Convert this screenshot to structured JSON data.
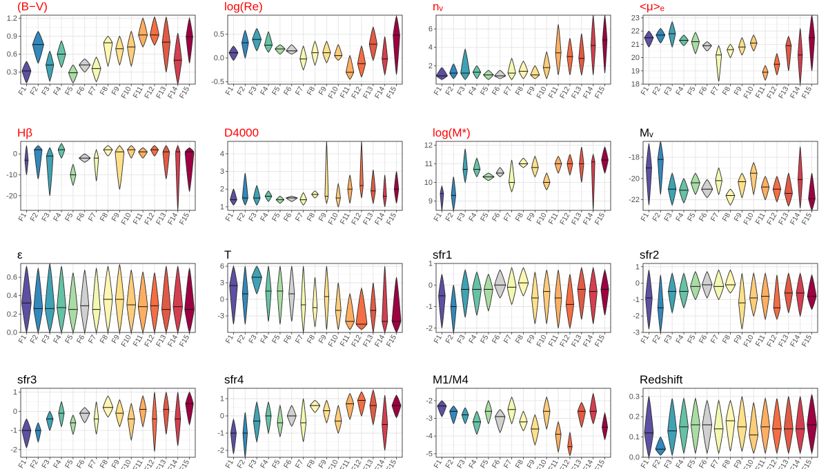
{
  "figure": {
    "categories": [
      "F1",
      "F2",
      "F3",
      "F4",
      "F5",
      "F6",
      "F7",
      "F8",
      "F9",
      "F10",
      "F11",
      "F12",
      "F13",
      "F14",
      "F15"
    ],
    "palette": [
      "#5e4fa2",
      "#3288bd",
      "#3fa2b4",
      "#66c2a5",
      "#a9dca4",
      "#d0d0d0",
      "#f2f8b0",
      "#fdf6b2",
      "#fee08b",
      "#fdcc7a",
      "#fdae61",
      "#f46d43",
      "#e25a44",
      "#d53e4f",
      "#9e0142"
    ]
  },
  "chart_data": [
    {
      "type": "violin",
      "title": "(B−V)",
      "title_color": "#ff0000",
      "ylim": [
        0.1,
        1.25
      ],
      "yticks": [
        "0.3",
        "0.6",
        "0.9",
        "1.2"
      ],
      "ytick_values": [
        0.3,
        0.6,
        0.9,
        1.2
      ],
      "medians": [
        0.32,
        0.76,
        0.42,
        0.6,
        0.29,
        0.42,
        0.36,
        0.79,
        0.69,
        0.72,
        0.92,
        0.92,
        0.8,
        0.5,
        0.89
      ],
      "lows": [
        0.12,
        0.45,
        0.15,
        0.38,
        0.12,
        0.3,
        0.14,
        0.4,
        0.42,
        0.4,
        0.72,
        0.75,
        0.3,
        0.1,
        0.45
      ],
      "highs": [
        0.48,
        0.98,
        0.65,
        0.82,
        0.42,
        0.52,
        0.55,
        0.9,
        0.9,
        0.98,
        1.2,
        1.22,
        1.22,
        0.95,
        1.2
      ],
      "widths": [
        0.8,
        1.0,
        0.7,
        0.75,
        0.8,
        1.0,
        0.8,
        0.8,
        0.7,
        0.7,
        0.8,
        0.8,
        0.7,
        0.7,
        0.6
      ]
    },
    {
      "type": "violin",
      "title": "log(Re)",
      "title_color": "#ff0000",
      "ylim": [
        -0.55,
        0.9
      ],
      "yticks": [
        "-0.5",
        "0.0",
        "0.5"
      ],
      "ytick_values": [
        -0.5,
        0.0,
        0.5
      ],
      "medians": [
        0.11,
        0.32,
        0.39,
        0.27,
        0.19,
        0.15,
        -0.02,
        0.11,
        0.11,
        0.05,
        -0.3,
        -0.12,
        0.29,
        -0.02,
        0.48
      ],
      "lows": [
        -0.05,
        0.0,
        0.15,
        0.12,
        0.08,
        0.08,
        -0.25,
        -0.15,
        -0.1,
        -0.05,
        -0.45,
        -0.4,
        -0.05,
        -0.35,
        -0.35
      ],
      "highs": [
        0.25,
        0.58,
        0.62,
        0.55,
        0.28,
        0.28,
        0.25,
        0.35,
        0.35,
        0.28,
        0.05,
        0.25,
        0.65,
        0.45,
        0.88
      ],
      "widths": [
        0.8,
        0.6,
        0.8,
        0.7,
        0.9,
        1.0,
        0.6,
        0.6,
        0.7,
        0.7,
        0.7,
        0.7,
        0.7,
        0.5,
        0.6
      ]
    },
    {
      "type": "violin",
      "title": "nᵥ",
      "title_color": "#ff0000",
      "ylim": [
        0,
        7.5
      ],
      "yticks": [
        "2",
        "4",
        "6"
      ],
      "ytick_values": [
        2,
        4,
        6
      ],
      "medians": [
        0.9,
        1.2,
        1.2,
        1.3,
        1.0,
        0.9,
        1.2,
        1.4,
        1.0,
        1.8,
        3.4,
        3.0,
        2.8,
        4.2,
        4.8
      ],
      "lows": [
        0.5,
        0.6,
        0.5,
        0.6,
        0.5,
        0.6,
        0.5,
        0.6,
        0.6,
        0.6,
        1.0,
        1.0,
        1.0,
        1.0,
        1.2
      ],
      "highs": [
        1.8,
        2.2,
        3.8,
        2.0,
        1.5,
        1.5,
        2.8,
        2.5,
        2.0,
        3.5,
        6.5,
        5.0,
        5.5,
        7.5,
        7.5
      ],
      "widths": [
        1.0,
        0.7,
        0.8,
        0.7,
        0.9,
        1.0,
        0.7,
        0.8,
        0.8,
        0.6,
        0.5,
        0.5,
        0.5,
        0.4,
        0.4
      ]
    },
    {
      "type": "violin",
      "title": "<μ>ₑ",
      "title_color": "#ff0000",
      "ylim": [
        18,
        23.2
      ],
      "yticks": [
        "18",
        "19",
        "20",
        "21",
        "22",
        "23"
      ],
      "ytick_values": [
        18,
        19,
        20,
        21,
        22,
        23
      ],
      "medians": [
        21.5,
        21.7,
        21.8,
        21.3,
        21.2,
        20.9,
        20.2,
        20.6,
        20.8,
        21.1,
        18.9,
        19.5,
        20.9,
        20.2,
        21.5
      ],
      "lows": [
        20.8,
        21.1,
        20.8,
        20.9,
        20.3,
        20.5,
        18.2,
        20.0,
        20.2,
        20.5,
        18.3,
        18.7,
        19.0,
        18.0,
        19.0
      ],
      "highs": [
        22.0,
        22.2,
        22.7,
        21.7,
        21.9,
        21.2,
        20.9,
        21.0,
        21.5,
        21.7,
        19.4,
        20.3,
        21.6,
        22.2,
        23.2
      ],
      "widths": [
        0.8,
        0.8,
        0.6,
        0.8,
        0.7,
        0.8,
        0.5,
        0.6,
        0.6,
        0.6,
        0.5,
        0.5,
        0.5,
        0.4,
        0.5
      ]
    },
    {
      "type": "violin",
      "title": "Hβ",
      "title_color": "#ff0000",
      "ylim": [
        -27,
        6
      ],
      "yticks": [
        "0",
        "-10",
        "-20"
      ],
      "ytick_values": [
        0,
        -10,
        -20
      ],
      "medians": [
        -3,
        2,
        -1,
        2,
        -10,
        -2,
        -2,
        2,
        1,
        2,
        1,
        2,
        1,
        1,
        1
      ],
      "lows": [
        -10,
        -12,
        -20,
        -2,
        -15,
        -4,
        -13,
        -1,
        -17,
        -2,
        -2,
        -1,
        -12,
        -27,
        -18
      ],
      "highs": [
        4,
        4,
        3,
        5,
        -5,
        0,
        2,
        4,
        4,
        4,
        3,
        4,
        4,
        4,
        3
      ],
      "widths": [
        0.3,
        0.7,
        0.6,
        0.6,
        0.5,
        1.0,
        0.4,
        0.8,
        0.8,
        0.7,
        0.8,
        0.7,
        0.6,
        0.4,
        0.8
      ]
    },
    {
      "type": "violin",
      "title": "D4000",
      "title_color": "#ff0000",
      "ylim": [
        0.8,
        4.7
      ],
      "yticks": [
        "1",
        "2",
        "3",
        "4"
      ],
      "ytick_values": [
        1,
        2,
        3,
        4
      ],
      "medians": [
        1.4,
        1.5,
        1.5,
        1.6,
        1.4,
        1.5,
        1.4,
        1.7,
        1.6,
        1.5,
        2.0,
        2.2,
        1.9,
        1.6,
        2.0
      ],
      "lows": [
        1.1,
        1.1,
        1.1,
        1.3,
        1.2,
        1.3,
        1.1,
        1.5,
        1.2,
        1.0,
        1.2,
        1.5,
        1.2,
        1.0,
        1.2
      ],
      "highs": [
        2.0,
        2.9,
        2.2,
        1.9,
        1.6,
        1.6,
        1.8,
        1.9,
        4.7,
        2.3,
        2.8,
        4.7,
        3.1,
        2.8,
        3.0
      ],
      "widths": [
        0.6,
        0.5,
        0.6,
        0.6,
        0.7,
        1.0,
        0.6,
        0.6,
        0.3,
        0.4,
        0.4,
        0.3,
        0.4,
        0.3,
        0.4
      ]
    },
    {
      "type": "violin",
      "title": "log(M*)",
      "title_color": "#ff0000",
      "ylim": [
        8.5,
        12.2
      ],
      "yticks": [
        "9",
        "10",
        "11",
        "12"
      ],
      "ytick_values": [
        9,
        10,
        11,
        12
      ],
      "medians": [
        9.4,
        9.3,
        10.7,
        10.7,
        10.3,
        10.5,
        10.0,
        11.0,
        10.8,
        10.0,
        11.0,
        11.0,
        11.0,
        11.1,
        11.2
      ],
      "lows": [
        8.5,
        8.5,
        10.0,
        10.3,
        10.1,
        10.3,
        9.5,
        10.8,
        10.3,
        9.6,
        10.5,
        10.4,
        10.0,
        8.5,
        10.5
      ],
      "highs": [
        9.8,
        10.3,
        11.8,
        11.3,
        10.5,
        10.8,
        11.2,
        11.3,
        11.4,
        10.5,
        11.4,
        11.5,
        11.9,
        11.5,
        11.9
      ],
      "widths": [
        0.3,
        0.4,
        0.4,
        0.6,
        1.0,
        0.7,
        0.5,
        0.8,
        0.6,
        0.6,
        0.6,
        0.5,
        0.4,
        0.3,
        0.6
      ]
    },
    {
      "type": "violin",
      "title": "Mᵥ",
      "title_color": "#000000",
      "ylim": [
        -23,
        -16.5
      ],
      "yticks": [
        "-18",
        "-20",
        "-22"
      ],
      "ytick_values": [
        -18,
        -20,
        -22
      ],
      "medians": [
        -19.0,
        -18.2,
        -21.0,
        -21.1,
        -20.4,
        -21.0,
        -20.2,
        -21.6,
        -20.3,
        -19.5,
        -20.8,
        -21.0,
        -21.4,
        -20.1,
        -21.9
      ],
      "lows": [
        -22.5,
        -21.5,
        -22.5,
        -22.3,
        -21.5,
        -21.8,
        -21.5,
        -22.5,
        -21.8,
        -21.5,
        -22.0,
        -22.2,
        -22.6,
        -22.8,
        -23.0
      ],
      "highs": [
        -16.7,
        -16.5,
        -19.5,
        -20.0,
        -19.5,
        -20.1,
        -19.0,
        -21.0,
        -19.5,
        -18.5,
        -19.8,
        -19.8,
        -19.5,
        -17.0,
        -19.5
      ],
      "widths": [
        0.5,
        0.5,
        0.7,
        0.8,
        0.8,
        1.0,
        0.6,
        0.8,
        0.7,
        0.6,
        0.7,
        0.7,
        0.7,
        0.4,
        0.6
      ]
    },
    {
      "type": "violin",
      "title": "ε",
      "title_color": "#000000",
      "ylim": [
        0,
        0.75
      ],
      "yticks": [
        "0.0",
        "0.2",
        "0.4",
        "0.6"
      ],
      "ytick_values": [
        0.0,
        0.2,
        0.4,
        0.6
      ],
      "medians": [
        0.32,
        0.26,
        0.26,
        0.27,
        0.25,
        0.29,
        0.25,
        0.36,
        0.36,
        0.3,
        0.28,
        0.29,
        0.25,
        0.28,
        0.25
      ],
      "lows": [
        0.0,
        0.0,
        0.0,
        0.0,
        0.0,
        0.0,
        0.0,
        0.0,
        0.0,
        0.0,
        0.0,
        0.0,
        0.0,
        0.0,
        0.0
      ],
      "highs": [
        0.72,
        0.7,
        0.75,
        0.72,
        0.65,
        0.68,
        0.7,
        0.72,
        0.74,
        0.68,
        0.66,
        0.65,
        0.72,
        0.72,
        0.7
      ],
      "widths": [
        0.85,
        0.8,
        0.85,
        0.8,
        0.8,
        0.75,
        0.7,
        0.8,
        0.75,
        0.8,
        0.85,
        0.75,
        0.8,
        0.85,
        0.85
      ]
    },
    {
      "type": "violin",
      "title": "T",
      "title_color": "#000000",
      "ylim": [
        -6,
        6.5
      ],
      "yticks": [
        "6",
        "3",
        "0",
        "-3"
      ],
      "ytick_values": [
        6,
        3,
        0,
        -3
      ],
      "medians": [
        2.5,
        1.0,
        4.0,
        1.5,
        1.5,
        1.0,
        -1.0,
        -1.5,
        0.5,
        -2.0,
        -4.0,
        -4.5,
        -2.0,
        -4.0,
        -4.0
      ],
      "lows": [
        -4.5,
        -4.5,
        1.0,
        -4.0,
        -4.5,
        -4.0,
        -6.0,
        -5.0,
        -5.5,
        -5.5,
        -5.5,
        -5.5,
        -6.0,
        -6.0,
        -6.0
      ],
      "highs": [
        6.0,
        6.0,
        6.0,
        6.0,
        6.0,
        6.0,
        6.0,
        4.0,
        6.0,
        3.0,
        1.0,
        2.0,
        3.0,
        6.0,
        4.0
      ],
      "widths": [
        0.7,
        0.5,
        0.9,
        0.5,
        0.5,
        0.5,
        0.4,
        0.4,
        0.4,
        0.5,
        0.8,
        1.0,
        0.5,
        0.5,
        0.8
      ]
    },
    {
      "type": "violin",
      "title": "sfr1",
      "title_color": "#000000",
      "ylim": [
        -2.2,
        1.0
      ],
      "yticks": [
        "1",
        "0",
        "-1",
        "-2"
      ],
      "ytick_values": [
        1,
        0,
        -1,
        -2
      ],
      "medians": [
        -0.5,
        -1.0,
        -0.2,
        -0.2,
        -0.2,
        0.0,
        -0.1,
        0.1,
        -0.6,
        -0.3,
        -0.6,
        -0.9,
        -0.2,
        -0.3,
        -0.2
      ],
      "lows": [
        -2.0,
        -2.2,
        -1.5,
        -1.4,
        -1.2,
        -0.6,
        -0.9,
        -0.5,
        -1.8,
        -1.8,
        -2.0,
        -2.0,
        -1.6,
        -1.8,
        -1.4
      ],
      "highs": [
        0.5,
        0.0,
        0.7,
        0.6,
        0.5,
        0.7,
        0.8,
        0.8,
        0.6,
        0.7,
        0.7,
        0.5,
        0.8,
        0.8,
        0.7
      ],
      "widths": [
        0.6,
        0.5,
        0.7,
        0.8,
        0.8,
        1.0,
        0.8,
        0.9,
        0.6,
        0.6,
        0.6,
        0.7,
        0.7,
        0.7,
        0.7
      ]
    },
    {
      "type": "violin",
      "title": "sfr2",
      "title_color": "#000000",
      "ylim": [
        -3,
        1.2
      ],
      "yticks": [
        "1",
        "0",
        "-1",
        "-2",
        "-3"
      ],
      "ytick_values": [
        1,
        0,
        -1,
        -2,
        -3
      ],
      "medians": [
        -0.9,
        -1.5,
        -0.5,
        -0.5,
        -0.2,
        -0.1,
        -0.2,
        -0.1,
        -1.2,
        -0.9,
        -0.8,
        -1.5,
        -0.6,
        -0.6,
        -0.8
      ],
      "lows": [
        -2.8,
        -3.0,
        -1.8,
        -1.5,
        -1.0,
        -0.9,
        -1.0,
        -0.6,
        -2.8,
        -2.0,
        -2.2,
        -2.2,
        -1.8,
        -2.0,
        -1.6
      ],
      "highs": [
        0.8,
        0.5,
        0.6,
        0.6,
        0.7,
        0.7,
        0.8,
        0.8,
        0.6,
        0.6,
        0.6,
        0.5,
        0.6,
        0.6,
        0.5
      ],
      "widths": [
        0.6,
        0.5,
        0.7,
        0.8,
        0.9,
        0.9,
        0.9,
        0.9,
        0.6,
        0.7,
        0.7,
        0.6,
        0.7,
        0.7,
        0.8
      ]
    },
    {
      "type": "violin",
      "title": "sfr3",
      "title_color": "#000000",
      "ylim": [
        -2.4,
        1.2
      ],
      "yticks": [
        "1",
        "0",
        "-1",
        "-2"
      ],
      "ytick_values": [
        1,
        0,
        -1,
        -2
      ],
      "medians": [
        -1.0,
        -1.0,
        -0.4,
        -0.1,
        -0.6,
        -0.1,
        -0.4,
        0.2,
        -0.1,
        -0.4,
        0.1,
        -0.4,
        0.1,
        -0.4,
        0.4
      ],
      "lows": [
        -1.9,
        -1.6,
        -1.0,
        -0.8,
        -1.2,
        -0.6,
        -1.2,
        -0.3,
        -0.8,
        -1.5,
        -0.8,
        -2.1,
        -1.2,
        -1.8,
        -0.7
      ],
      "highs": [
        -0.4,
        -0.6,
        0.0,
        0.5,
        -0.2,
        0.2,
        0.5,
        0.8,
        0.6,
        0.4,
        0.8,
        1.0,
        1.0,
        1.0,
        1.0
      ],
      "widths": [
        0.8,
        0.5,
        0.6,
        0.5,
        0.5,
        0.9,
        0.4,
        0.9,
        0.7,
        0.6,
        0.6,
        0.4,
        0.5,
        0.5,
        0.7
      ]
    },
    {
      "type": "violin",
      "title": "sfr4",
      "title_color": "#000000",
      "ylim": [
        -2.4,
        1.6
      ],
      "yticks": [
        "1",
        "0",
        "-1",
        "-2"
      ],
      "ytick_values": [
        1,
        0,
        -1,
        -2
      ],
      "medians": [
        -1.0,
        -1.0,
        -0.3,
        0.0,
        -0.4,
        0.0,
        -0.4,
        0.6,
        0.3,
        -0.3,
        0.7,
        0.9,
        0.6,
        -0.5,
        0.6
      ],
      "lows": [
        -2.2,
        -2.4,
        -1.5,
        -1.0,
        -1.2,
        -0.6,
        -1.5,
        0.2,
        -0.4,
        -1.0,
        -0.2,
        0.0,
        -0.5,
        -2.0,
        -0.1
      ],
      "highs": [
        -0.2,
        0.2,
        0.8,
        0.8,
        0.6,
        0.6,
        1.0,
        0.9,
        0.9,
        0.6,
        1.3,
        1.4,
        1.5,
        1.2,
        1.2
      ],
      "widths": [
        0.5,
        0.4,
        0.6,
        0.5,
        0.5,
        0.8,
        0.5,
        0.9,
        0.6,
        0.6,
        0.7,
        0.7,
        0.6,
        0.5,
        0.8
      ]
    },
    {
      "type": "violin",
      "title": "M1/M4",
      "title_color": "#000000",
      "ylim": [
        -5.2,
        -1.3
      ],
      "yticks": [
        "-2",
        "-3",
        "-4",
        "-5"
      ],
      "ytick_values": [
        -2,
        -3,
        -4,
        -5
      ],
      "medians": [
        -2.3,
        -2.6,
        -2.8,
        -3.2,
        -2.6,
        -2.9,
        -2.5,
        -3.2,
        -3.6,
        -2.6,
        -3.9,
        -4.6,
        -2.6,
        -2.6,
        -3.5
      ],
      "lows": [
        -2.9,
        -3.3,
        -3.3,
        -3.9,
        -3.3,
        -3.8,
        -3.3,
        -3.7,
        -4.5,
        -3.6,
        -4.9,
        -5.1,
        -3.5,
        -3.3,
        -4.2
      ],
      "highs": [
        -2.0,
        -2.3,
        -2.4,
        -2.6,
        -2.0,
        -2.5,
        -1.8,
        -2.6,
        -2.8,
        -1.8,
        -3.2,
        -3.8,
        -2.1,
        -1.6,
        -2.7
      ],
      "widths": [
        0.8,
        0.7,
        0.6,
        0.7,
        0.6,
        0.9,
        0.7,
        0.7,
        0.7,
        0.6,
        0.5,
        0.4,
        0.7,
        0.6,
        0.5
      ]
    },
    {
      "type": "violin",
      "title": "Redshift",
      "title_color": "#000000",
      "ylim": [
        0,
        0.34
      ],
      "yticks": [
        "0.0",
        "0.1",
        "0.2",
        "0.3"
      ],
      "ytick_values": [
        0.0,
        0.1,
        0.2,
        0.3
      ],
      "medians": [
        0.12,
        0.04,
        0.13,
        0.15,
        0.16,
        0.16,
        0.14,
        0.18,
        0.15,
        0.11,
        0.15,
        0.14,
        0.14,
        0.14,
        0.16
      ],
      "lows": [
        0.0,
        0.01,
        0.01,
        0.02,
        0.02,
        0.02,
        0.02,
        0.03,
        0.03,
        0.02,
        0.02,
        0.02,
        0.02,
        0.02,
        0.02
      ],
      "highs": [
        0.3,
        0.1,
        0.29,
        0.29,
        0.29,
        0.28,
        0.28,
        0.28,
        0.3,
        0.27,
        0.29,
        0.29,
        0.3,
        0.3,
        0.31
      ],
      "widths": [
        0.8,
        0.9,
        0.8,
        0.8,
        0.8,
        0.85,
        0.8,
        0.8,
        0.8,
        0.8,
        0.8,
        0.8,
        0.8,
        0.8,
        0.85
      ]
    }
  ]
}
